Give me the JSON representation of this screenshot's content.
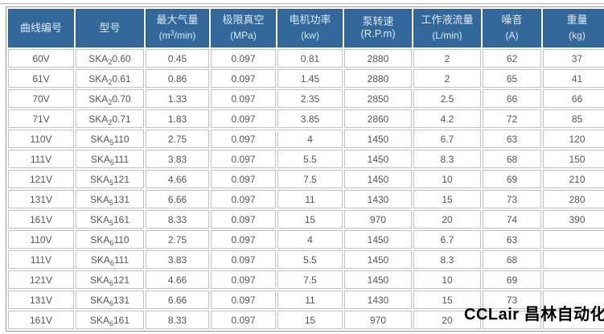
{
  "colors": {
    "header_bg": "#33689b",
    "header_text": "#dce9f4",
    "cell_text": "#555555",
    "cell_border": "#c0c0c0",
    "table_border": "#9a9a9a"
  },
  "watermark": {
    "text": "CCLair 昌林自动化"
  },
  "table": {
    "headers": [
      {
        "title": "曲线编号",
        "unit": ""
      },
      {
        "title": "型号",
        "unit": ""
      },
      {
        "title": "最大气量",
        "unit_pre": "(m",
        "unit_sup": "3",
        "unit_post": "/min)"
      },
      {
        "title": "极限真空",
        "unit": "(MPa)"
      },
      {
        "title": "电机功率",
        "unit": "(kw)"
      },
      {
        "title": "泵转速(R.P.m)",
        "unit": ""
      },
      {
        "title": "工作液流量",
        "unit": "(L/min)"
      },
      {
        "title": "噪音",
        "unit": "(A)"
      },
      {
        "title": "重量",
        "unit": "(kg)"
      }
    ],
    "rows": [
      {
        "curve": "60V",
        "model": {
          "pre": "SKA",
          "sub": "2",
          "post": "0.60"
        },
        "values": [
          "0.45",
          "0.097",
          "0.81",
          "2880",
          "2",
          "62",
          "37"
        ]
      },
      {
        "curve": "61V",
        "model": {
          "pre": "SKA",
          "sub": "2",
          "post": "0.61"
        },
        "values": [
          "0.86",
          "0.097",
          "1.45",
          "2880",
          "2",
          "65",
          "41"
        ]
      },
      {
        "curve": "70V",
        "model": {
          "pre": "SKA",
          "sub": "2",
          "post": "0.70"
        },
        "values": [
          "1.33",
          "0.097",
          "2.35",
          "2850",
          "2.5",
          "66",
          "66"
        ]
      },
      {
        "curve": "71V",
        "model": {
          "pre": "SKA",
          "sub": "2",
          "post": "0.71"
        },
        "values": [
          "1.83",
          "0.097",
          "3.85",
          "2860",
          "4.2",
          "72",
          "85"
        ]
      },
      {
        "curve": "110V",
        "model": {
          "pre": "SKA",
          "sub": "5",
          "post": "110"
        },
        "values": [
          "2.75",
          "0.097",
          "4",
          "1450",
          "6.7",
          "63",
          "120"
        ]
      },
      {
        "curve": "111V",
        "model": {
          "pre": "SKA",
          "sub": "5",
          "post": "111"
        },
        "values": [
          "3.83",
          "0.097",
          "5.5",
          "1450",
          "8.3",
          "68",
          "150"
        ]
      },
      {
        "curve": "121V",
        "model": {
          "pre": "SKA",
          "sub": "5",
          "post": "121"
        },
        "values": [
          "4.66",
          "0.097",
          "7.5",
          "1450",
          "10",
          "69",
          "210"
        ]
      },
      {
        "curve": "131V",
        "model": {
          "pre": "SKA",
          "sub": "5",
          "post": "131"
        },
        "values": [
          "6.66",
          "0.097",
          "11",
          "1430",
          "15",
          "73",
          "280"
        ]
      },
      {
        "curve": "161V",
        "model": {
          "pre": "SKA",
          "sub": "5",
          "post": "161"
        },
        "values": [
          "8.33",
          "0.097",
          "15",
          "970",
          "20",
          "74",
          "390"
        ]
      },
      {
        "curve": "110V",
        "model": {
          "pre": "SKA",
          "sub": "6",
          "post": "110"
        },
        "values": [
          "2.75",
          "0.097",
          "4",
          "1450",
          "6.7",
          "63",
          ""
        ]
      },
      {
        "curve": "111V",
        "model": {
          "pre": "SKA",
          "sub": "6",
          "post": "111"
        },
        "values": [
          "3.83",
          "0.097",
          "5.5",
          "1450",
          "8.3",
          "68",
          ""
        ]
      },
      {
        "curve": "121V",
        "model": {
          "pre": "SKA",
          "sub": "6",
          "post": "121"
        },
        "values": [
          "4.66",
          "0.097",
          "7.5",
          "1450",
          "10",
          "69",
          ""
        ]
      },
      {
        "curve": "131V",
        "model": {
          "pre": "SKA",
          "sub": "6",
          "post": "131"
        },
        "values": [
          "6.66",
          "0.097",
          "11",
          "1430",
          "15",
          "73",
          ""
        ]
      },
      {
        "curve": "161V",
        "model": {
          "pre": "SKA",
          "sub": "6",
          "post": "161"
        },
        "values": [
          "8.33",
          "0.097",
          "15",
          "970",
          "20",
          "",
          ""
        ]
      }
    ]
  }
}
